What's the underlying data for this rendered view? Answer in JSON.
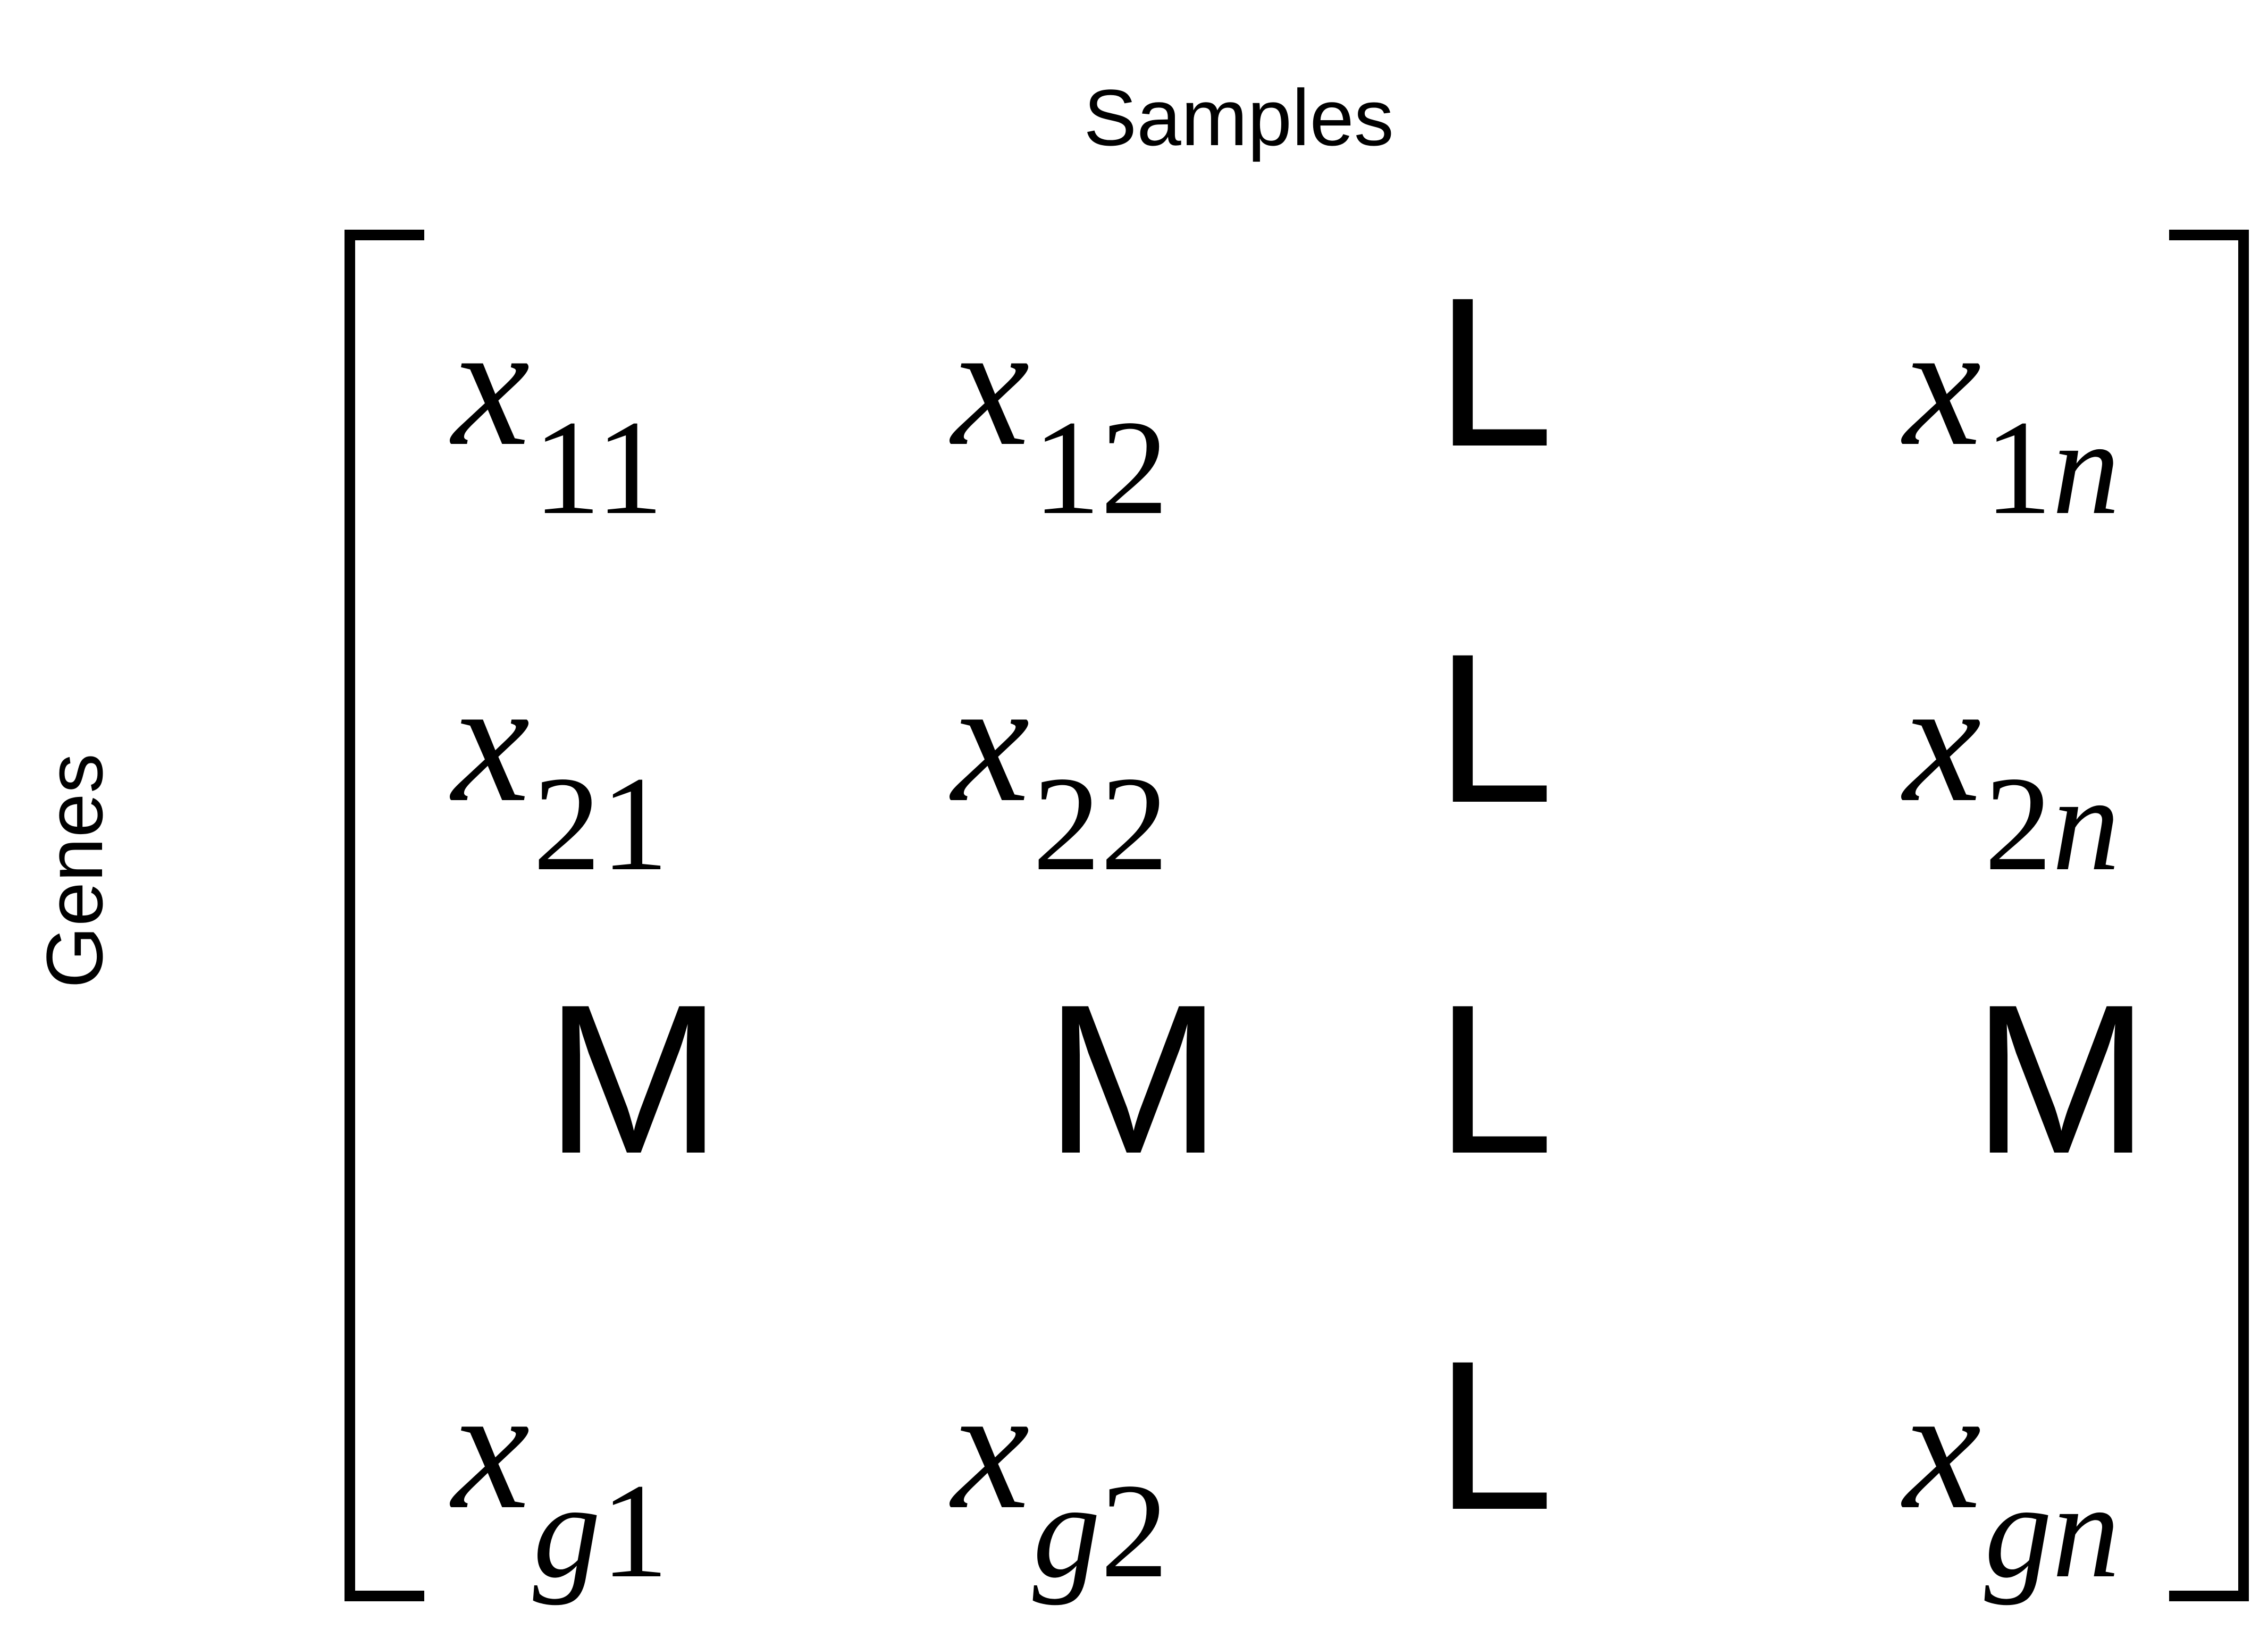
{
  "labels": {
    "columns": "Samples",
    "rows": "Genes"
  },
  "matrix": {
    "rows": [
      [
        {
          "kind": "entry",
          "var": "x",
          "sub_a": "1",
          "sub_b": "1",
          "sub_b_italic": false
        },
        {
          "kind": "entry",
          "var": "x",
          "sub_a": "1",
          "sub_b": "2",
          "sub_b_italic": false
        },
        {
          "kind": "glyph",
          "text": "L"
        },
        {
          "kind": "entry",
          "var": "x",
          "sub_a": "1",
          "sub_b": "n",
          "sub_b_italic": true
        }
      ],
      [
        {
          "kind": "entry",
          "var": "x",
          "sub_a": "2",
          "sub_b": "1",
          "sub_b_italic": false
        },
        {
          "kind": "entry",
          "var": "x",
          "sub_a": "2",
          "sub_b": "2",
          "sub_b_italic": false
        },
        {
          "kind": "glyph",
          "text": "L"
        },
        {
          "kind": "entry",
          "var": "x",
          "sub_a": "2",
          "sub_b": "n",
          "sub_b_italic": true
        }
      ],
      [
        {
          "kind": "glyph",
          "text": "M"
        },
        {
          "kind": "glyph",
          "text": "M"
        },
        {
          "kind": "glyph",
          "text": "L"
        },
        {
          "kind": "glyph",
          "text": "M"
        }
      ],
      [
        {
          "kind": "entry",
          "var": "x",
          "sub_a": "g",
          "sub_a_italic": true,
          "sub_b": "1",
          "sub_b_italic": false
        },
        {
          "kind": "entry",
          "var": "x",
          "sub_a": "g",
          "sub_a_italic": true,
          "sub_b": "2",
          "sub_b_italic": false
        },
        {
          "kind": "glyph",
          "text": "L"
        },
        {
          "kind": "entry",
          "var": "x",
          "sub_a": "g",
          "sub_a_italic": true,
          "sub_b": "n",
          "sub_b_italic": true
        }
      ]
    ]
  }
}
